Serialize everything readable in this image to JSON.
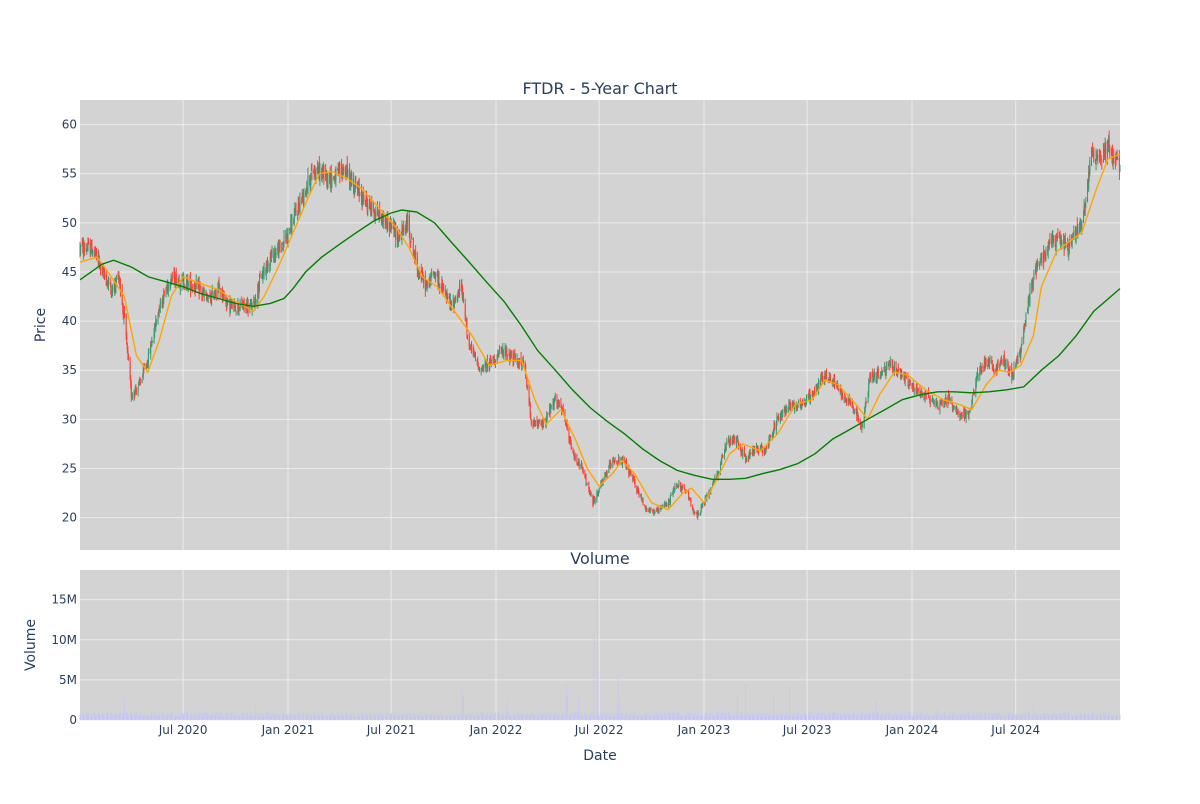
{
  "chart_data": [
    {
      "type": "candlestick",
      "title": "FTDR - 5-Year Chart",
      "xlabel": "",
      "ylabel": "Price",
      "ylim": [
        16.7,
        62.5
      ],
      "y_ticks": [
        20,
        25,
        30,
        35,
        40,
        45,
        50,
        55,
        60
      ],
      "x_range": [
        "2020-01-02",
        "2024-12-31"
      ],
      "grid": true,
      "up_color": "#3d9970",
      "down_color": "#ff4136",
      "background": "#d3d3d3",
      "price_anchors": [
        [
          "2020-01-02",
          47.5
        ],
        [
          "2020-01-25",
          47.3
        ],
        [
          "2020-02-15",
          44.5
        ],
        [
          "2020-02-28",
          43.0
        ],
        [
          "2020-03-10",
          44.8
        ],
        [
          "2020-03-20",
          40.0
        ],
        [
          "2020-04-01",
          32.5
        ],
        [
          "2020-04-15",
          33.5
        ],
        [
          "2020-04-30",
          36.0
        ],
        [
          "2020-05-20",
          41.5
        ],
        [
          "2020-06-10",
          44.5
        ],
        [
          "2020-07-01",
          44.0
        ],
        [
          "2020-07-25",
          43.5
        ],
        [
          "2020-08-15",
          42.0
        ],
        [
          "2020-09-01",
          43.5
        ],
        [
          "2020-09-20",
          41.5
        ],
        [
          "2020-10-10",
          41.5
        ],
        [
          "2020-11-01",
          41.5
        ],
        [
          "2020-11-15",
          44.5
        ],
        [
          "2020-12-01",
          46.5
        ],
        [
          "2020-12-20",
          47.5
        ],
        [
          "2021-01-05",
          49.5
        ],
        [
          "2021-01-25",
          52.5
        ],
        [
          "2021-02-15",
          55.5
        ],
        [
          "2021-03-01",
          55.0
        ],
        [
          "2021-03-20",
          54.5
        ],
        [
          "2021-04-10",
          55.5
        ],
        [
          "2021-04-30",
          53.5
        ],
        [
          "2021-05-20",
          52.0
        ],
        [
          "2021-06-05",
          51.0
        ],
        [
          "2021-06-25",
          50.0
        ],
        [
          "2021-07-15",
          48.5
        ],
        [
          "2021-07-30",
          50.0
        ],
        [
          "2021-08-15",
          45.5
        ],
        [
          "2021-09-01",
          43.5
        ],
        [
          "2021-09-15",
          45.0
        ],
        [
          "2021-10-01",
          43.0
        ],
        [
          "2021-10-15",
          41.5
        ],
        [
          "2021-11-01",
          43.5
        ],
        [
          "2021-11-15",
          37.5
        ],
        [
          "2021-12-05",
          35.0
        ],
        [
          "2021-12-25",
          36.0
        ],
        [
          "2022-01-15",
          37.0
        ],
        [
          "2022-02-05",
          36.0
        ],
        [
          "2022-02-20",
          35.5
        ],
        [
          "2022-03-05",
          29.5
        ],
        [
          "2022-03-25",
          29.5
        ],
        [
          "2022-04-15",
          32.0
        ],
        [
          "2022-04-30",
          30.5
        ],
        [
          "2022-05-15",
          26.5
        ],
        [
          "2022-06-01",
          25.0
        ],
        [
          "2022-06-20",
          21.5
        ],
        [
          "2022-07-10",
          24.0
        ],
        [
          "2022-07-25",
          26.0
        ],
        [
          "2022-08-15",
          25.5
        ],
        [
          "2022-09-01",
          23.5
        ],
        [
          "2022-09-20",
          21.0
        ],
        [
          "2022-10-10",
          20.5
        ],
        [
          "2022-10-30",
          21.5
        ],
        [
          "2022-11-15",
          23.5
        ],
        [
          "2022-12-01",
          22.5
        ],
        [
          "2022-12-20",
          20.0
        ],
        [
          "2023-01-05",
          22.0
        ],
        [
          "2023-01-25",
          24.5
        ],
        [
          "2023-02-10",
          27.5
        ],
        [
          "2023-02-25",
          28.0
        ],
        [
          "2023-03-15",
          26.0
        ],
        [
          "2023-04-01",
          27.0
        ],
        [
          "2023-04-20",
          27.0
        ],
        [
          "2023-05-10",
          30.0
        ],
        [
          "2023-05-30",
          31.5
        ],
        [
          "2023-06-20",
          31.5
        ],
        [
          "2023-07-10",
          32.5
        ],
        [
          "2023-07-30",
          34.5
        ],
        [
          "2023-08-15",
          34.0
        ],
        [
          "2023-09-01",
          32.5
        ],
        [
          "2023-09-20",
          31.5
        ],
        [
          "2023-10-05",
          29.0
        ],
        [
          "2023-10-20",
          34.5
        ],
        [
          "2023-11-05",
          34.5
        ],
        [
          "2023-11-25",
          35.5
        ],
        [
          "2023-12-15",
          34.5
        ],
        [
          "2024-01-05",
          33.0
        ],
        [
          "2024-01-25",
          32.5
        ],
        [
          "2024-02-15",
          31.5
        ],
        [
          "2024-03-05",
          32.0
        ],
        [
          "2024-03-25",
          30.5
        ],
        [
          "2024-04-10",
          30.5
        ],
        [
          "2024-04-25",
          34.5
        ],
        [
          "2024-05-10",
          36.0
        ],
        [
          "2024-05-25",
          35.0
        ],
        [
          "2024-06-10",
          36.0
        ],
        [
          "2024-06-25",
          34.5
        ],
        [
          "2024-07-10",
          37.0
        ],
        [
          "2024-07-25",
          42.5
        ],
        [
          "2024-08-05",
          45.5
        ],
        [
          "2024-08-25",
          47.5
        ],
        [
          "2024-09-15",
          48.5
        ],
        [
          "2024-10-01",
          47.5
        ],
        [
          "2024-10-20",
          49.5
        ],
        [
          "2024-11-01",
          52.0
        ],
        [
          "2024-11-10",
          57.0
        ],
        [
          "2024-11-25",
          56.5
        ],
        [
          "2024-12-10",
          58.0
        ],
        [
          "2024-12-31",
          55.5
        ]
      ],
      "moving_averages": [
        {
          "color": "#ffa500",
          "points": [
            [
              "2020-01-02",
              46.0
            ],
            [
              "2020-02-01",
              46.5
            ],
            [
              "2020-02-20",
              45.0
            ],
            [
              "2020-03-20",
              42.5
            ],
            [
              "2020-04-10",
              36.5
            ],
            [
              "2020-04-30",
              34.8
            ],
            [
              "2020-05-20",
              38.0
            ],
            [
              "2020-06-10",
              42.5
            ],
            [
              "2020-07-01",
              44.5
            ],
            [
              "2020-08-01",
              43.8
            ],
            [
              "2020-09-01",
              43.2
            ],
            [
              "2020-10-01",
              42.0
            ],
            [
              "2020-11-01",
              41.0
            ],
            [
              "2020-11-20",
              42.5
            ],
            [
              "2020-12-15",
              45.5
            ],
            [
              "2021-01-10",
              49.0
            ],
            [
              "2021-02-05",
              52.5
            ],
            [
              "2021-02-25",
              55.0
            ],
            [
              "2021-03-20",
              55.2
            ],
            [
              "2021-04-15",
              54.5
            ],
            [
              "2021-05-10",
              53.5
            ],
            [
              "2021-06-10",
              51.5
            ],
            [
              "2021-07-10",
              49.5
            ],
            [
              "2021-08-01",
              47.5
            ],
            [
              "2021-08-25",
              44.5
            ],
            [
              "2021-09-20",
              43.5
            ],
            [
              "2021-10-20",
              41.0
            ],
            [
              "2021-11-20",
              38.5
            ],
            [
              "2021-12-20",
              35.5
            ],
            [
              "2022-01-20",
              36.0
            ],
            [
              "2022-02-15",
              36.0
            ],
            [
              "2022-03-10",
              32.0
            ],
            [
              "2022-03-30",
              29.5
            ],
            [
              "2022-04-25",
              31.0
            ],
            [
              "2022-05-20",
              28.0
            ],
            [
              "2022-06-10",
              25.0
            ],
            [
              "2022-07-01",
              23.2
            ],
            [
              "2022-07-25",
              24.5
            ],
            [
              "2022-08-10",
              25.8
            ],
            [
              "2022-09-01",
              24.5
            ],
            [
              "2022-10-01",
              21.5
            ],
            [
              "2022-10-30",
              20.8
            ],
            [
              "2022-11-25",
              22.5
            ],
            [
              "2022-12-10",
              23.0
            ],
            [
              "2023-01-01",
              21.5
            ],
            [
              "2023-01-20",
              23.5
            ],
            [
              "2023-02-15",
              26.5
            ],
            [
              "2023-03-10",
              27.5
            ],
            [
              "2023-04-10",
              26.8
            ],
            [
              "2023-05-10",
              28.5
            ],
            [
              "2023-06-10",
              31.5
            ],
            [
              "2023-07-10",
              32.0
            ],
            [
              "2023-08-01",
              34.0
            ],
            [
              "2023-08-25",
              33.5
            ],
            [
              "2023-09-25",
              31.5
            ],
            [
              "2023-10-15",
              30.0
            ],
            [
              "2023-11-05",
              32.5
            ],
            [
              "2023-12-01",
              34.8
            ],
            [
              "2023-12-25",
              34.5
            ],
            [
              "2024-01-25",
              33.0
            ],
            [
              "2024-02-25",
              32.0
            ],
            [
              "2024-03-25",
              31.5
            ],
            [
              "2024-04-15",
              31.0
            ],
            [
              "2024-05-10",
              33.5
            ],
            [
              "2024-06-01",
              35.0
            ],
            [
              "2024-06-20",
              34.8
            ],
            [
              "2024-07-10",
              35.5
            ],
            [
              "2024-08-01",
              38.5
            ],
            [
              "2024-08-15",
              43.5
            ],
            [
              "2024-09-10",
              47.0
            ],
            [
              "2024-09-30",
              48.0
            ],
            [
              "2024-10-25",
              49.0
            ],
            [
              "2024-11-20",
              53.5
            ],
            [
              "2024-12-10",
              56.5
            ],
            [
              "2024-12-31",
              57.0
            ]
          ]
        },
        {
          "color": "#008000",
          "points": [
            [
              "2020-01-02",
              44.2
            ],
            [
              "2020-02-10",
              45.8
            ],
            [
              "2020-03-01",
              46.2
            ],
            [
              "2020-04-01",
              45.5
            ],
            [
              "2020-05-01",
              44.5
            ],
            [
              "2020-06-01",
              44.0
            ],
            [
              "2020-07-01",
              43.5
            ],
            [
              "2020-08-01",
              42.8
            ],
            [
              "2020-09-01",
              42.3
            ],
            [
              "2020-10-01",
              41.8
            ],
            [
              "2020-11-01",
              41.5
            ],
            [
              "2020-12-01",
              41.8
            ],
            [
              "2020-12-25",
              42.3
            ],
            [
              "2021-01-10",
              43.3
            ],
            [
              "2021-02-01",
              45.0
            ],
            [
              "2021-03-01",
              46.5
            ],
            [
              "2021-04-01",
              47.8
            ],
            [
              "2021-05-01",
              49.0
            ],
            [
              "2021-06-01",
              50.2
            ],
            [
              "2021-07-01",
              51.0
            ],
            [
              "2021-07-20",
              51.3
            ],
            [
              "2021-08-15",
              51.1
            ],
            [
              "2021-09-15",
              50.0
            ],
            [
              "2021-10-15",
              48.0
            ],
            [
              "2021-11-15",
              46.0
            ],
            [
              "2021-12-15",
              44.0
            ],
            [
              "2022-01-15",
              42.0
            ],
            [
              "2022-02-15",
              39.5
            ],
            [
              "2022-03-15",
              37.0
            ],
            [
              "2022-04-15",
              35.0
            ],
            [
              "2022-05-15",
              33.0
            ],
            [
              "2022-06-15",
              31.2
            ],
            [
              "2022-07-15",
              29.8
            ],
            [
              "2022-08-15",
              28.5
            ],
            [
              "2022-09-15",
              27.0
            ],
            [
              "2022-10-15",
              25.8
            ],
            [
              "2022-11-15",
              24.8
            ],
            [
              "2022-12-15",
              24.3
            ],
            [
              "2023-01-15",
              23.9
            ],
            [
              "2023-02-15",
              23.9
            ],
            [
              "2023-03-15",
              24.0
            ],
            [
              "2023-04-15",
              24.5
            ],
            [
              "2023-05-15",
              24.9
            ],
            [
              "2023-06-15",
              25.5
            ],
            [
              "2023-07-15",
              26.5
            ],
            [
              "2023-08-15",
              28.0
            ],
            [
              "2023-09-15",
              29.0
            ],
            [
              "2023-10-15",
              30.0
            ],
            [
              "2023-11-15",
              31.0
            ],
            [
              "2023-12-15",
              32.0
            ],
            [
              "2024-01-15",
              32.5
            ],
            [
              "2024-02-15",
              32.8
            ],
            [
              "2024-03-15",
              32.8
            ],
            [
              "2024-04-15",
              32.7
            ],
            [
              "2024-05-15",
              32.8
            ],
            [
              "2024-06-15",
              33.0
            ],
            [
              "2024-07-15",
              33.3
            ],
            [
              "2024-08-15",
              35.0
            ],
            [
              "2024-09-15",
              36.5
            ],
            [
              "2024-10-15",
              38.5
            ],
            [
              "2024-11-15",
              41.0
            ],
            [
              "2024-12-31",
              43.3
            ]
          ]
        }
      ]
    },
    {
      "type": "bar",
      "title": "Volume",
      "xlabel": "Date",
      "ylabel": "Volume",
      "ylim": [
        0,
        18700000
      ],
      "y_ticks": [
        0,
        5000000,
        10000000,
        15000000
      ],
      "y_tick_labels": [
        "0",
        "5M",
        "10M",
        "15M"
      ],
      "x_ticks": [
        "2020-07-01",
        "2021-01-01",
        "2021-07-01",
        "2022-01-01",
        "2022-07-01",
        "2023-01-01",
        "2023-07-01",
        "2024-01-01",
        "2024-07-01"
      ],
      "x_tick_labels": [
        "Jul 2020",
        "Jan 2021",
        "Jul 2021",
        "Jan 2022",
        "Jul 2022",
        "Jan 2023",
        "Jul 2023",
        "Jan 2024",
        "Jul 2024"
      ],
      "grid": true,
      "bar_color": "#c6c6f5",
      "background": "#d3d3d3",
      "baseline_volume": 650000,
      "volume_spikes": [
        [
          "2020-03-20",
          2700000
        ],
        [
          "2020-11-05",
          1800000
        ],
        [
          "2021-11-02",
          4200000
        ],
        [
          "2021-11-05",
          3000000
        ],
        [
          "2022-01-20",
          2500000
        ],
        [
          "2022-05-04",
          4600000
        ],
        [
          "2022-05-06",
          3200000
        ],
        [
          "2022-05-26",
          2900000
        ],
        [
          "2022-06-22",
          10800000
        ],
        [
          "2022-06-28",
          18300000
        ],
        [
          "2022-06-29",
          6500000
        ],
        [
          "2022-08-03",
          5500000
        ],
        [
          "2022-08-05",
          2800000
        ],
        [
          "2023-03-01",
          3000000
        ],
        [
          "2023-03-15",
          4500000
        ],
        [
          "2023-05-03",
          3000000
        ],
        [
          "2023-05-31",
          4200000
        ],
        [
          "2023-10-30",
          2500000
        ],
        [
          "2024-02-15",
          1500000
        ],
        [
          "2024-08-01",
          2200000
        ]
      ]
    }
  ]
}
